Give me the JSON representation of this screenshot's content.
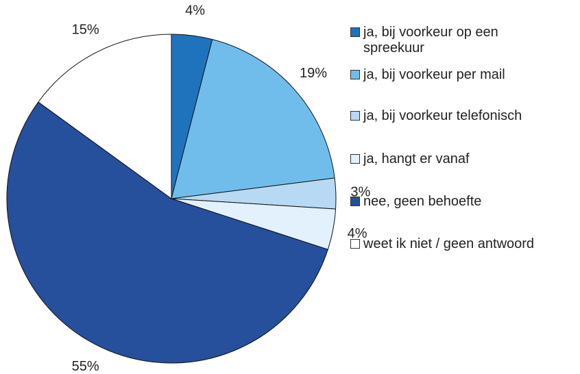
{
  "chart_data": {
    "type": "pie",
    "categories": [
      "ja, bij voorkeur op een spreekuur",
      "ja, bij voorkeur per mail",
      "ja, bij voorkeur telefonisch",
      "ja, hangt er vanaf",
      "nee, geen behoefte",
      "weet ik niet / geen antwoord"
    ],
    "values": [
      4,
      19,
      3,
      4,
      55,
      15
    ],
    "value_labels": [
      "4%",
      "19%",
      "3%",
      "4%",
      "55%",
      "15%"
    ],
    "colors": [
      "#1f73bc",
      "#70bdec",
      "#b7d9f3",
      "#e3f1fc",
      "#264f9c",
      "#ffffff"
    ],
    "legend": "right"
  }
}
